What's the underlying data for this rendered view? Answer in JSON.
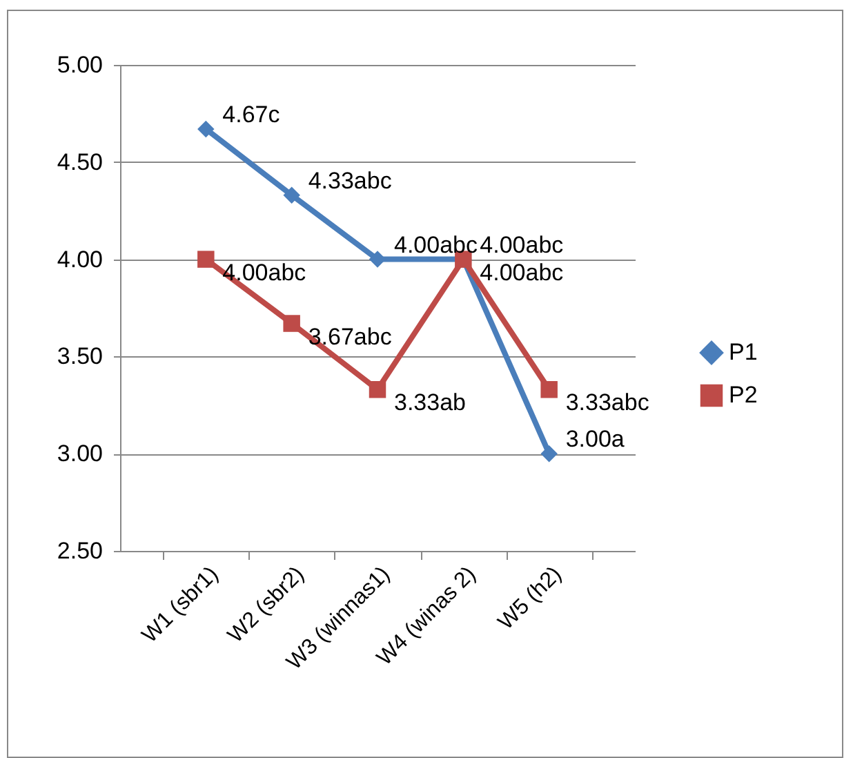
{
  "chart_data": {
    "type": "line",
    "categories": [
      "W1 (sbr1)",
      "W2 (sbr2)",
      "W3 (winnas1)",
      "W4 (winas 2)",
      "W5 (h2)"
    ],
    "series": [
      {
        "name": "P1",
        "color": "#4a7ebb",
        "marker": "diamond",
        "values": [
          4.67,
          4.33,
          4.0,
          4.0,
          3.0
        ],
        "value_labels": [
          "4.67c",
          "4.33abc",
          "4.00abc",
          "4.00abc",
          "3.00a"
        ]
      },
      {
        "name": "P2",
        "color": "#be4b48",
        "marker": "square",
        "values": [
          4.0,
          3.67,
          3.33,
          4.0,
          3.33
        ],
        "value_labels": [
          "4.00abc",
          "3.67abc",
          "3.33ab",
          "4.00abc",
          "3.33abc"
        ]
      }
    ],
    "ylim": [
      2.5,
      5
    ],
    "yticks": [
      {
        "value": 2.5,
        "label": "2.50"
      },
      {
        "value": 3,
        "label": "3.00"
      },
      {
        "value": 3.5,
        "label": "3.50"
      },
      {
        "value": 4,
        "label": "4.00"
      },
      {
        "value": 4.5,
        "label": "4.50"
      },
      {
        "value": 5,
        "label": "5.00"
      }
    ],
    "grid": "y",
    "legend": "right",
    "line_style": "solid"
  }
}
